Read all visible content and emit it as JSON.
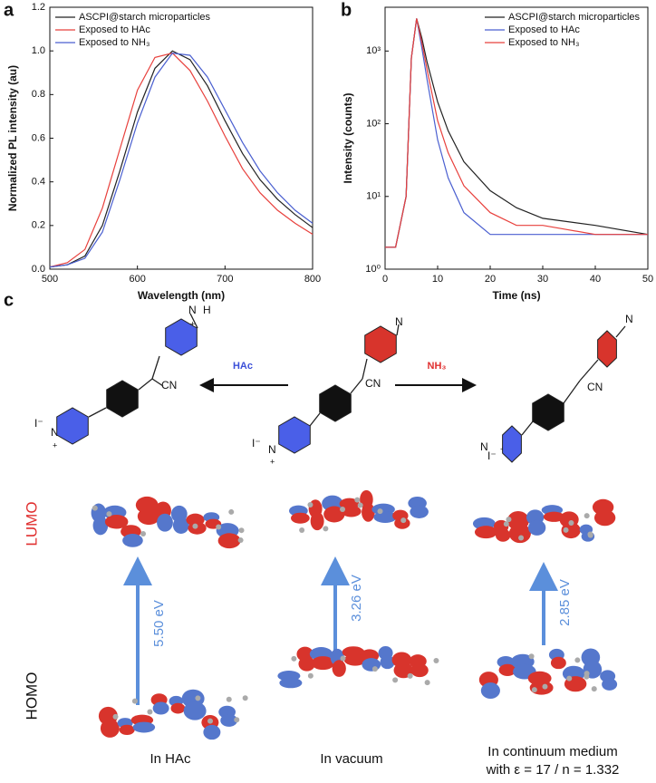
{
  "panel_labels": [
    "a",
    "b",
    "c"
  ],
  "chart_data": [
    {
      "type": "line",
      "xlabel": "Wavelength (nm)",
      "ylabel": "Normalized PL intensity (au)",
      "x": [
        500,
        520,
        540,
        560,
        580,
        600,
        620,
        640,
        660,
        680,
        700,
        720,
        740,
        760,
        780,
        800
      ],
      "series": [
        {
          "name": "ASCPI@starch microparticles",
          "color": "#222222",
          "values": [
            0.01,
            0.02,
            0.06,
            0.2,
            0.45,
            0.72,
            0.92,
            1.0,
            0.96,
            0.84,
            0.68,
            0.53,
            0.41,
            0.32,
            0.25,
            0.19
          ]
        },
        {
          "name": "Exposed to HAc",
          "color": "#e8403c",
          "values": [
            0.01,
            0.03,
            0.09,
            0.28,
            0.55,
            0.82,
            0.97,
            0.99,
            0.91,
            0.77,
            0.61,
            0.46,
            0.35,
            0.27,
            0.21,
            0.16
          ]
        },
        {
          "name": "Exposed to NH₃",
          "color": "#4a5fd0",
          "values": [
            0.01,
            0.02,
            0.05,
            0.17,
            0.41,
            0.67,
            0.88,
            0.99,
            0.98,
            0.88,
            0.73,
            0.58,
            0.45,
            0.35,
            0.27,
            0.21
          ]
        }
      ],
      "xlim": [
        500,
        800
      ],
      "xticks": [
        500,
        600,
        700,
        800
      ],
      "ylim": [
        0,
        1.2
      ],
      "yticks": [
        {
          "value": 0,
          "label": "0.0"
        },
        0.2,
        0.4,
        0.6,
        0.8,
        {
          "value": 1,
          "label": "1.0"
        },
        1.2
      ],
      "legend": "upper-left"
    },
    {
      "type": "line",
      "xlabel": "Time (ns)",
      "ylabel": "Intensity (counts)",
      "log_y": true,
      "x": [
        0,
        2,
        4,
        5,
        6,
        7,
        8,
        10,
        12,
        15,
        20,
        25,
        30,
        40,
        50
      ],
      "series": [
        {
          "name": "ASCPI@starch microparticles",
          "color": "#222222",
          "values": [
            2,
            2,
            10,
            800,
            2800,
            1500,
            700,
            200,
            80,
            30,
            12,
            7,
            5,
            4,
            3
          ]
        },
        {
          "name": "Exposed to HAc",
          "color": "#4a5fd0",
          "values": [
            2,
            2,
            10,
            800,
            2800,
            1100,
            400,
            60,
            18,
            6,
            3,
            3,
            3,
            3,
            3
          ]
        },
        {
          "name": "Exposed to NH₃",
          "color": "#e8403c",
          "values": [
            2,
            2,
            10,
            800,
            2800,
            1300,
            550,
            110,
            40,
            14,
            6,
            4,
            4,
            3,
            3
          ]
        }
      ],
      "xlim": [
        0,
        50
      ],
      "xticks": [
        0,
        10,
        20,
        30,
        40,
        50
      ],
      "ylim": [
        1,
        4000
      ],
      "yticks": [
        {
          "value": 1,
          "label": "10⁰"
        },
        {
          "value": 10,
          "label": "10¹"
        },
        {
          "value": 100,
          "label": "10²"
        },
        {
          "value": 1000,
          "label": "10³"
        }
      ],
      "legend": "upper-right"
    }
  ],
  "diagram": {
    "reactions": [
      "HAc",
      "NH₃"
    ],
    "molecules": [
      {
        "amine": "N",
        "proton": "H",
        "charge": "+",
        "cyano": "CN",
        "iodide": "I⁻",
        "pyridinium": "N",
        "pcharge": "+"
      },
      {
        "amine": "N",
        "cyano": "CN",
        "iodide": "I⁻",
        "pyridinium": "N",
        "pcharge": "+"
      },
      {
        "amine": "N",
        "cyano": "CN",
        "iodide": "I⁻",
        "pyridinium": "N",
        "pcharge": "+"
      }
    ],
    "orbitals": {
      "lumo": "LUMO",
      "homo": "HOMO"
    },
    "gaps": [
      "5.50 eV",
      "3.26 eV",
      "2.85 eV"
    ],
    "media": [
      "In HAc",
      "In vacuum",
      "In continuum medium",
      "with ε = 17 / n = 1.332"
    ]
  }
}
